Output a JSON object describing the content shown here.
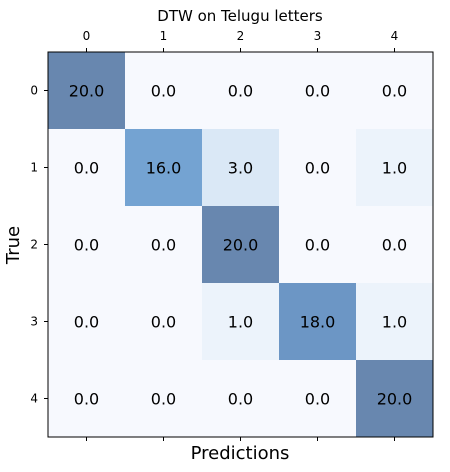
{
  "chart_data": {
    "type": "heatmap",
    "title": "DTW on Telugu letters",
    "xlabel": "Predictions",
    "ylabel": "True",
    "x_categories": [
      "0",
      "1",
      "2",
      "3",
      "4"
    ],
    "y_categories": [
      "0",
      "1",
      "2",
      "3",
      "4"
    ],
    "values": [
      [
        20.0,
        0.0,
        0.0,
        0.0,
        0.0
      ],
      [
        0.0,
        16.0,
        3.0,
        0.0,
        1.0
      ],
      [
        0.0,
        0.0,
        20.0,
        0.0,
        0.0
      ],
      [
        0.0,
        0.0,
        1.0,
        18.0,
        1.0
      ],
      [
        0.0,
        0.0,
        0.0,
        0.0,
        20.0
      ]
    ],
    "value_labels": [
      [
        "20.0",
        "0.0",
        "0.0",
        "0.0",
        "0.0"
      ],
      [
        "0.0",
        "16.0",
        "3.0",
        "0.0",
        "1.0"
      ],
      [
        "0.0",
        "0.0",
        "20.0",
        "0.0",
        "0.0"
      ],
      [
        "0.0",
        "0.0",
        "1.0",
        "18.0",
        "1.0"
      ],
      [
        "0.0",
        "0.0",
        "0.0",
        "0.0",
        "20.0"
      ]
    ],
    "x_ticks_position": "top",
    "colormap": "Blues",
    "value_range": [
      0,
      20
    ],
    "grid": false
  }
}
